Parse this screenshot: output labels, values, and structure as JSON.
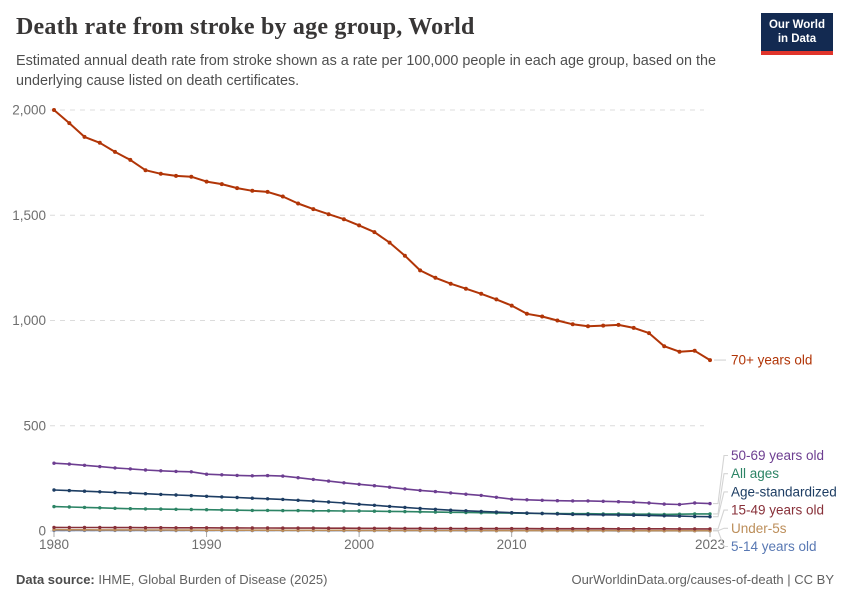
{
  "header": {
    "title": "Death rate from stroke by age group, World",
    "subtitle": "Estimated annual death rate from stroke shown as a rate per 100,000 people in each age group, based on the underlying cause listed on death certificates."
  },
  "logo": {
    "line1": "Our World",
    "line2": "in Data"
  },
  "footer": {
    "source_label": "Data source:",
    "source_text": " IHME, Global Burden of Disease (2025)",
    "right_text": "OurWorldinData.org/causes-of-death | CC BY"
  },
  "chart_data": {
    "type": "line",
    "title": "Death rate from stroke by age group, World",
    "xlabel": "",
    "ylabel": "",
    "xlim": [
      1980,
      2023
    ],
    "ylim": [
      0,
      2000
    ],
    "xticks": [
      1980,
      1990,
      2000,
      2010,
      2023
    ],
    "yticks": [
      0,
      500,
      1000,
      1500,
      2000
    ],
    "grid": "horizontal-dashed",
    "legend_position": "right-end-labels",
    "grid_color": "#dcdcdc",
    "axis_text_color": "#6e6e6e",
    "x": [
      1980,
      1981,
      1982,
      1983,
      1984,
      1985,
      1986,
      1987,
      1988,
      1989,
      1990,
      1991,
      1992,
      1993,
      1994,
      1995,
      1996,
      1997,
      1998,
      1999,
      2000,
      2001,
      2002,
      2003,
      2004,
      2005,
      2006,
      2007,
      2008,
      2009,
      2010,
      2011,
      2012,
      2013,
      2014,
      2015,
      2016,
      2017,
      2018,
      2019,
      2020,
      2021,
      2022,
      2023
    ],
    "series": [
      {
        "name": "5-14 years old",
        "color": "#5878b3",
        "values": [
          3,
          2.95,
          2.9,
          2.85,
          2.8,
          2.75,
          2.7,
          2.65,
          2.6,
          2.55,
          2.5,
          2.45,
          2.4,
          2.35,
          2.3,
          2.25,
          2.2,
          2.15,
          2.1,
          2.05,
          2,
          1.95,
          1.9,
          1.85,
          1.8,
          1.75,
          1.7,
          1.65,
          1.6,
          1.55,
          1.5,
          1.45,
          1.4,
          1.35,
          1.3,
          1.25,
          1.2,
          1.15,
          1.1,
          1.08,
          1.05,
          1.03,
          1.01,
          1
        ]
      },
      {
        "name": "Under-5s",
        "color": "#bc8e5a",
        "values": [
          6,
          5.8,
          5.6,
          5.4,
          5.2,
          5,
          4.8,
          4.6,
          4.4,
          4.2,
          4,
          3.9,
          3.8,
          3.7,
          3.6,
          3.5,
          3.4,
          3.3,
          3.2,
          3.1,
          3,
          2.9,
          2.8,
          2.7,
          2.6,
          2.5,
          2.4,
          2.3,
          2.2,
          2.1,
          2,
          2,
          1.9,
          1.9,
          1.8,
          1.8,
          1.7,
          1.7,
          1.6,
          1.6,
          1.5,
          1.5,
          1.5,
          1.5
        ]
      },
      {
        "name": "15-49 years old",
        "color": "#883039",
        "values": [
          17,
          16.8,
          16.6,
          16.4,
          16.2,
          16,
          15.8,
          15.6,
          15.4,
          15.2,
          15,
          14.8,
          14.6,
          14.4,
          14.2,
          14,
          13.8,
          13.6,
          13.4,
          13.2,
          13,
          12.8,
          12.6,
          12.4,
          12.2,
          12,
          11.8,
          11.6,
          11.5,
          11.4,
          11.3,
          11.2,
          11.1,
          11,
          10.9,
          10.8,
          10.7,
          10.6,
          10.5,
          10.4,
          10.3,
          10.2,
          10.1,
          10
        ]
      },
      {
        "name": "All ages",
        "color": "#2c8465",
        "values": [
          116,
          114,
          112,
          110,
          108,
          106,
          105,
          104,
          103,
          102,
          101,
          100,
          99,
          98,
          98,
          97,
          97,
          96,
          96,
          95,
          95,
          94,
          93,
          92,
          91,
          90,
          89,
          88,
          87,
          86,
          85,
          84,
          83,
          83,
          82,
          82,
          81,
          81,
          80,
          80,
          79,
          80,
          81,
          81
        ]
      },
      {
        "name": "Age-standardized",
        "color": "#1d3d63",
        "values": [
          195,
          192,
          189,
          186,
          183,
          180,
          177,
          174,
          171,
          168,
          165,
          162,
          159,
          156,
          153,
          150,
          146,
          142,
          138,
          133,
          127,
          122,
          117,
          112,
          107,
          103,
          99,
          96,
          93,
          90,
          87,
          85,
          83,
          81,
          79,
          78,
          77,
          76,
          75,
          74,
          72,
          71,
          69,
          68
        ]
      },
      {
        "name": "50-69 years old",
        "color": "#6d3e91",
        "values": [
          322,
          318,
          312,
          306,
          300,
          295,
          290,
          286,
          283,
          281,
          270,
          267,
          264,
          262,
          263,
          261,
          253,
          245,
          237,
          229,
          222,
          215,
          208,
          200,
          193,
          187,
          181,
          175,
          169,
          160,
          151,
          148,
          146,
          144,
          143,
          143,
          141,
          139,
          137,
          133,
          128,
          126,
          133,
          130
        ]
      },
      {
        "name": "70+ years old",
        "color": "#b13507",
        "values": [
          2000,
          1938,
          1872,
          1844,
          1801,
          1763,
          1714,
          1697,
          1687,
          1683,
          1660,
          1648,
          1629,
          1616,
          1611,
          1589,
          1556,
          1529,
          1505,
          1481,
          1452,
          1420,
          1370,
          1308,
          1238,
          1203,
          1175,
          1151,
          1127,
          1100,
          1071,
          1032,
          1019,
          1000,
          982,
          973,
          976,
          979,
          965,
          940,
          878,
          852,
          856,
          812
        ]
      }
    ]
  }
}
